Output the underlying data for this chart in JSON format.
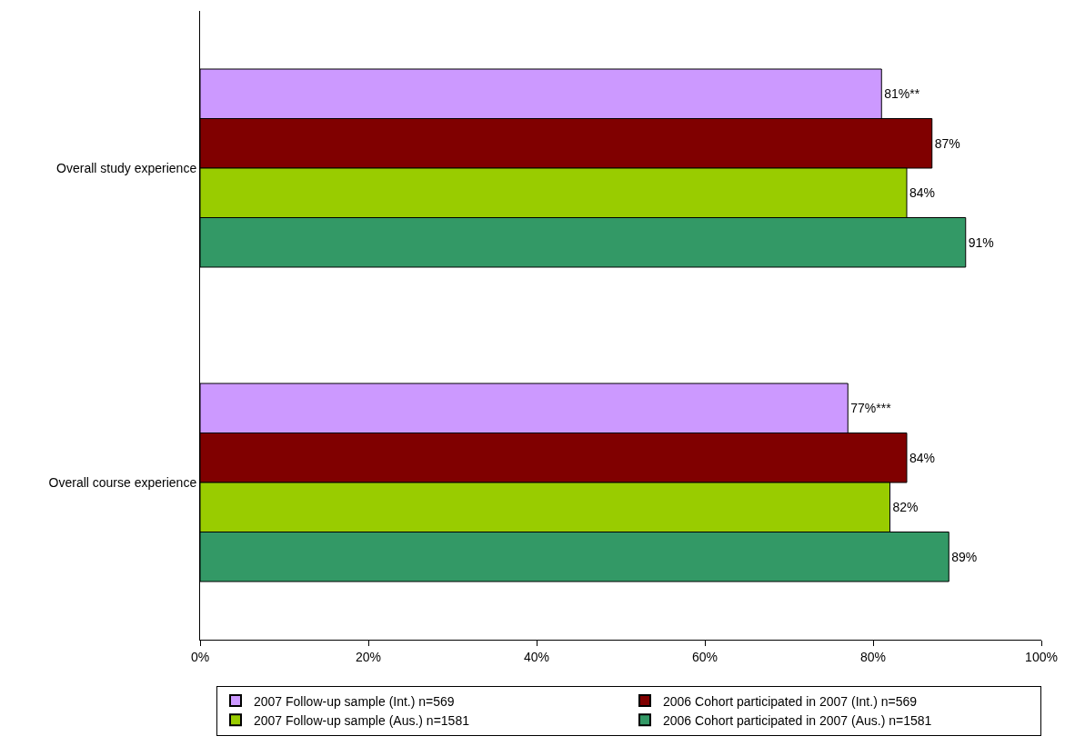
{
  "chart_data": {
    "type": "bar",
    "orientation": "horizontal",
    "categories": [
      "Overall study experience",
      "Overall course experience"
    ],
    "series": [
      {
        "name": "2007 Follow-up sample (Int.) n=569",
        "color": "#cc99ff",
        "values": [
          81,
          77
        ],
        "value_labels": [
          "81%**",
          "77%***"
        ]
      },
      {
        "name": "2006 Cohort participated in 2007 (Int.) n=569",
        "color": "#800000",
        "values": [
          87,
          84
        ],
        "value_labels": [
          "87%",
          "84%"
        ]
      },
      {
        "name": "2007 Follow-up sample (Aus.) n=1581",
        "color": "#99cc00",
        "values": [
          84,
          82
        ],
        "value_labels": [
          "84%",
          "82%"
        ]
      },
      {
        "name": "2006 Cohort participated in 2007 (Aus.) n=1581",
        "color": "#339966",
        "values": [
          91,
          89
        ],
        "value_labels": [
          "91%",
          "89%"
        ]
      }
    ],
    "xlim": [
      0,
      100
    ],
    "xticks": [
      {
        "value": 0,
        "label": "0%"
      },
      {
        "value": 20,
        "label": "20%"
      },
      {
        "value": 40,
        "label": "40%"
      },
      {
        "value": 60,
        "label": "60%"
      },
      {
        "value": 80,
        "label": "80%"
      },
      {
        "value": 100,
        "label": "100%"
      }
    ],
    "grid": false,
    "legend": "bottom"
  }
}
